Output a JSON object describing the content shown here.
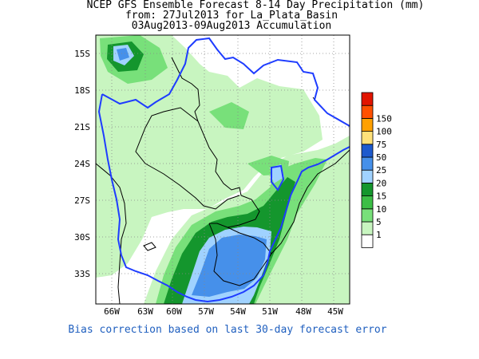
{
  "title": {
    "line1": "NCEP GFS Ensemble Forecast 8-14 Day Precipitation (mm)",
    "line2": "from: 27Jul2013   for La_Plata_Basin",
    "line3": "03Aug2013-09Aug2013 Accumulation"
  },
  "footer": "Bias correction based on last 30-day forecast error",
  "lat_labels": [
    "15S",
    "18S",
    "21S",
    "24S",
    "27S",
    "30S",
    "33S"
  ],
  "lon_labels": [
    "66W",
    "63W",
    "60W",
    "57W",
    "54W",
    "51W",
    "48W",
    "45W"
  ],
  "legend": {
    "levels": [
      "1",
      "5",
      "10",
      "15",
      "20",
      "25",
      "50",
      "75",
      "100",
      "150"
    ],
    "colors": [
      "#ffffff",
      "#c8f5c0",
      "#78e07a",
      "#3cbe46",
      "#14962d",
      "#a0d2ff",
      "#4690ea",
      "#1e5acd",
      "#ffe17a",
      "#ffa000",
      "#ff5000",
      "#e11400"
    ]
  },
  "colors": {
    "basin_outline": "#1e3cff",
    "border": "#000000",
    "grid": "#888888"
  }
}
